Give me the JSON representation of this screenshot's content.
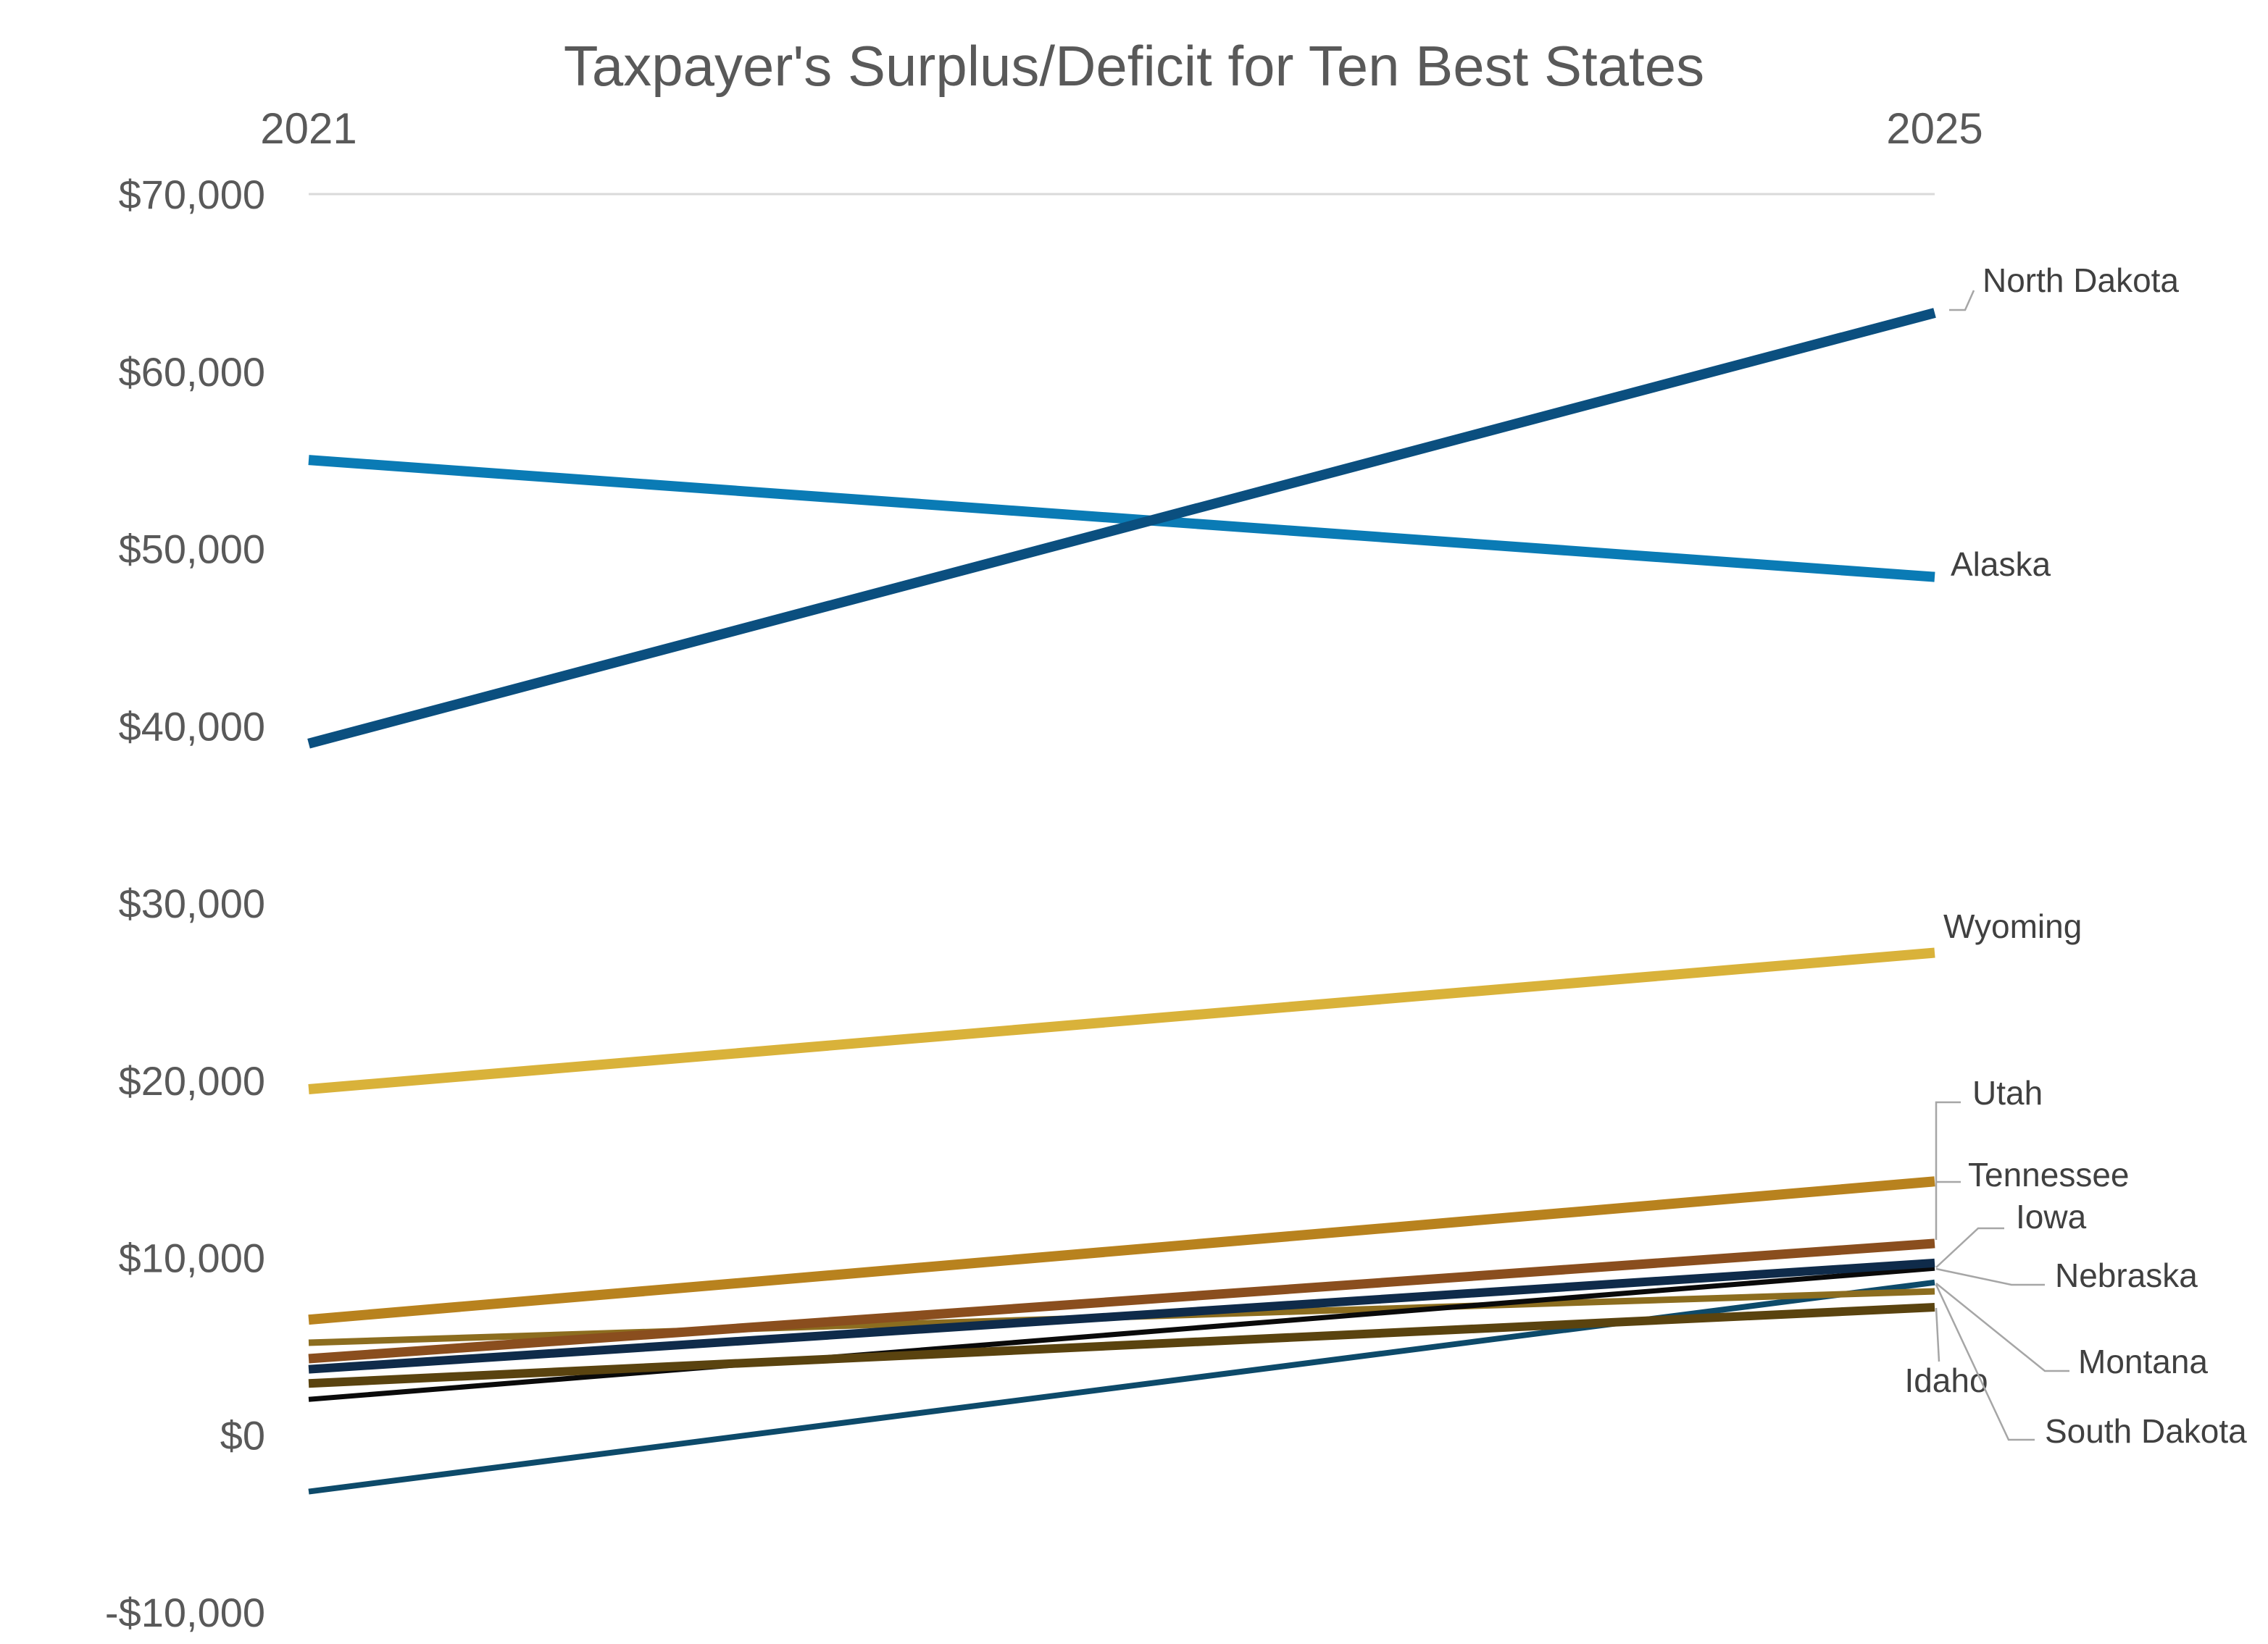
{
  "chart_data": {
    "type": "line",
    "title": "Taxpayer's Surplus/Deficit for Ten Best States",
    "categories": [
      "2021",
      "2025"
    ],
    "ylim": [
      -10000,
      70000
    ],
    "yticks": [
      70000,
      60000,
      50000,
      40000,
      30000,
      20000,
      10000,
      0,
      -10000
    ],
    "ytick_labels": [
      "$70,000",
      "$60,000",
      "$50,000",
      "$40,000",
      "$30,000",
      "$20,000",
      "$10,000",
      "$0",
      "-$10,000"
    ],
    "grid": "top gridline only",
    "legend": "none (series labeled at line ends)",
    "series": [
      {
        "name": "North Dakota",
        "values": [
          39000,
          63300
        ],
        "color": "#0b4f7f"
      },
      {
        "name": "Alaska",
        "values": [
          55000,
          48400
        ],
        "color": "#0a7bb5"
      },
      {
        "name": "Wyoming",
        "values": [
          19500,
          27200
        ],
        "color": "#d9b23a"
      },
      {
        "name": "Utah",
        "values": [
          4300,
          10800
        ],
        "color": "#8a4e1e"
      },
      {
        "name": "Tennessee",
        "values": [
          6500,
          14300
        ],
        "color": "#b8821e"
      },
      {
        "name": "Iowa",
        "values": [
          3700,
          9700
        ],
        "color": "#0f2b4a"
      },
      {
        "name": "Nebraska",
        "values": [
          2000,
          9400
        ],
        "color": "#0a0a0a"
      },
      {
        "name": "Montana",
        "values": [
          5200,
          8100
        ],
        "color": "#8c6d1f"
      },
      {
        "name": "Idaho",
        "values": [
          2900,
          7200
        ],
        "color": "#5a430f"
      },
      {
        "name": "South Dakota",
        "values": [
          -3200,
          8600
        ],
        "color": "#0d4a6a"
      }
    ]
  }
}
